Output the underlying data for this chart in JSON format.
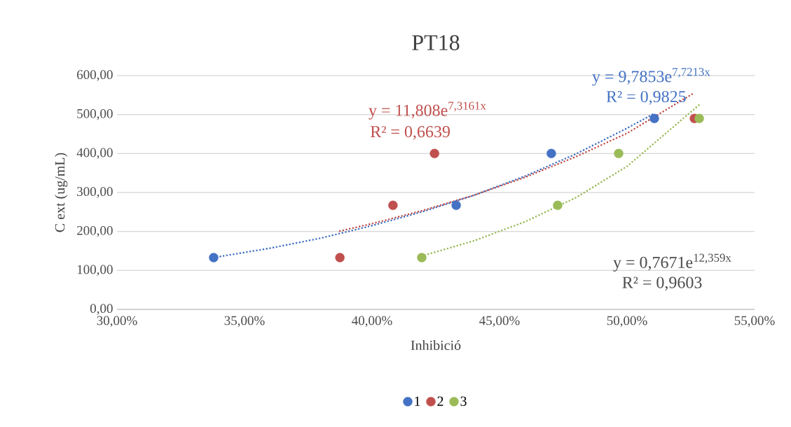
{
  "chart_data": {
    "type": "scatter",
    "title": "PT18",
    "xlabel": "Inhibició",
    "ylabel": "C ext (ug/mL)",
    "xlim": [
      30,
      55
    ],
    "ylim": [
      0,
      600
    ],
    "xticks": [
      {
        "value": 30,
        "label": "30,00%"
      },
      {
        "value": 35,
        "label": "35,00%"
      },
      {
        "value": 40,
        "label": "40,00%"
      },
      {
        "value": 45,
        "label": "45,00%"
      },
      {
        "value": 50,
        "label": "50,00%"
      },
      {
        "value": 55,
        "label": "55,00%"
      }
    ],
    "yticks": [
      {
        "value": 0,
        "label": "0,00"
      },
      {
        "value": 100,
        "label": "100,00"
      },
      {
        "value": 200,
        "label": "200,00"
      },
      {
        "value": 300,
        "label": "300,00"
      },
      {
        "value": 400,
        "label": "400,00"
      },
      {
        "value": 500,
        "label": "500,00"
      },
      {
        "value": 600,
        "label": "600,00"
      }
    ],
    "grid": "y",
    "legend": "bottom",
    "series": [
      {
        "name": "1",
        "marker": "circle",
        "color": "#4472c4",
        "x": [
          33.79,
          43.3,
          47.03,
          51.07
        ],
        "values": [
          133,
          267,
          400,
          490
        ]
      },
      {
        "name": "2",
        "marker": "circle",
        "color": "#c0504d",
        "x": [
          38.74,
          40.82,
          42.45,
          52.64
        ],
        "values": [
          133,
          267,
          400,
          490
        ]
      },
      {
        "name": "3",
        "marker": "circle",
        "color": "#9bbb59",
        "x": [
          41.95,
          47.28,
          49.67,
          52.83
        ],
        "values": [
          133,
          267,
          400,
          490
        ]
      },
      {
        "type": "line",
        "marker": "none",
        "line_style": "dotted",
        "color": "#4472c4",
        "x": [
          33.79,
          36,
          38,
          40,
          42,
          44,
          46,
          48,
          50,
          51.07
        ],
        "values": [
          133,
          157,
          183,
          215,
          251,
          293,
          342,
          399,
          465,
          503
        ]
      },
      {
        "type": "line",
        "marker": "none",
        "line_style": "dotted",
        "color": "#c0504d",
        "x": [
          38.74,
          40,
          42,
          44,
          46,
          48,
          50,
          52.64
        ],
        "values": [
          201,
          220,
          254,
          293,
          339,
          392,
          452,
          556
        ]
      },
      {
        "type": "line",
        "marker": "none",
        "line_style": "dotted",
        "color": "#9bbb59",
        "x": [
          41.95,
          44,
          46,
          48,
          50,
          52.83
        ],
        "values": [
          137,
          176,
          225,
          287,
          367,
          525
        ]
      }
    ],
    "annotations": [
      "y = 9,7853e$^{7,7213x}$",
      "R² = 0,9825",
      "y = 11,808e$^{7,3161x}$",
      "R² = 0,6639",
      "y = 0,7671e$^{12,359x}$",
      "R² = 0,9603"
    ]
  }
}
